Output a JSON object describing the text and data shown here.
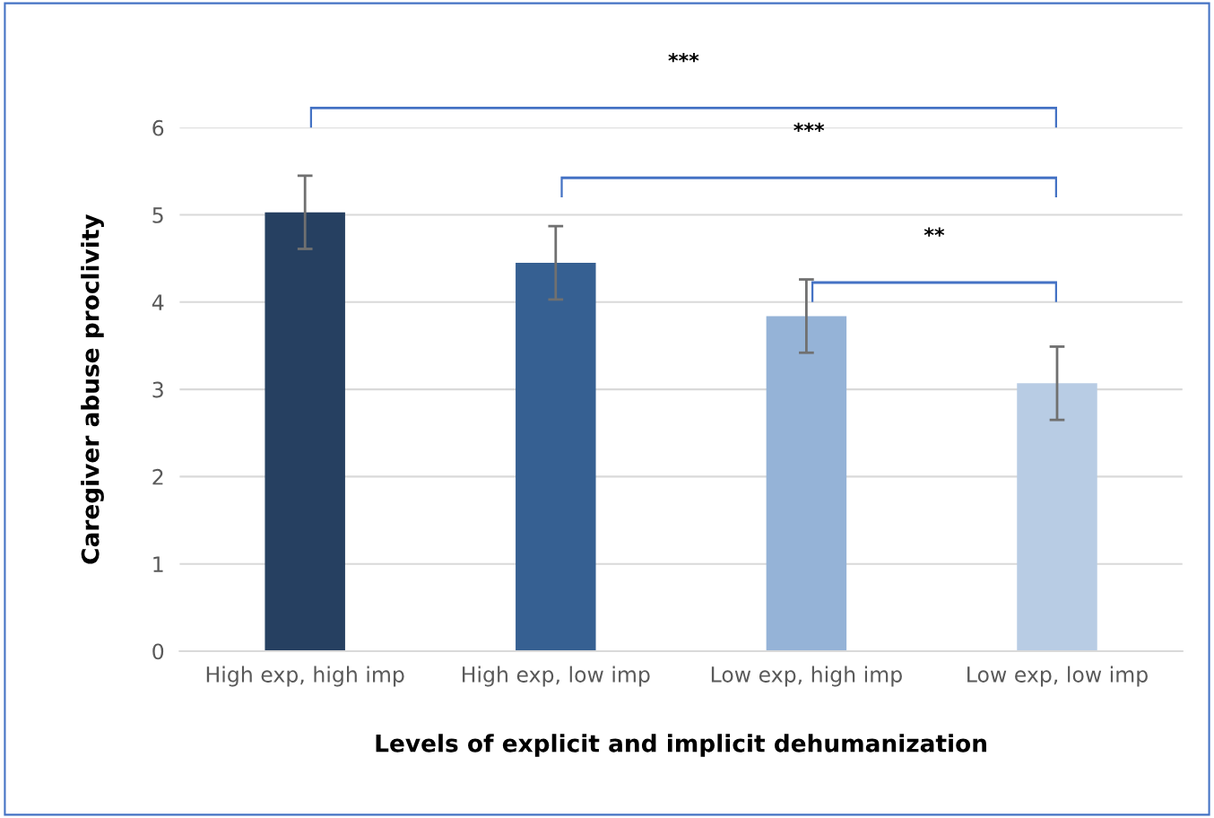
{
  "chart_data": {
    "type": "bar",
    "xlabel": "Levels of explicit and implicit dehumanization",
    "ylabel": "Caregiver abuse proclivity",
    "categories": [
      "High exp, high imp",
      "High exp, low imp",
      "Low exp, high imp",
      "Low exp, low imp"
    ],
    "values": [
      5.03,
      4.45,
      3.84,
      3.07
    ],
    "colors": [
      "#264061",
      "#366092",
      "#95b3d7",
      "#b8cce4"
    ],
    "errors": [
      0.42,
      0.42,
      0.42,
      0.42
    ],
    "ylim": [
      0,
      6
    ],
    "yticks": [
      0,
      1,
      2,
      3,
      4,
      5,
      6
    ],
    "grid": "y",
    "annotations": [
      "***",
      "***",
      "**"
    ]
  }
}
